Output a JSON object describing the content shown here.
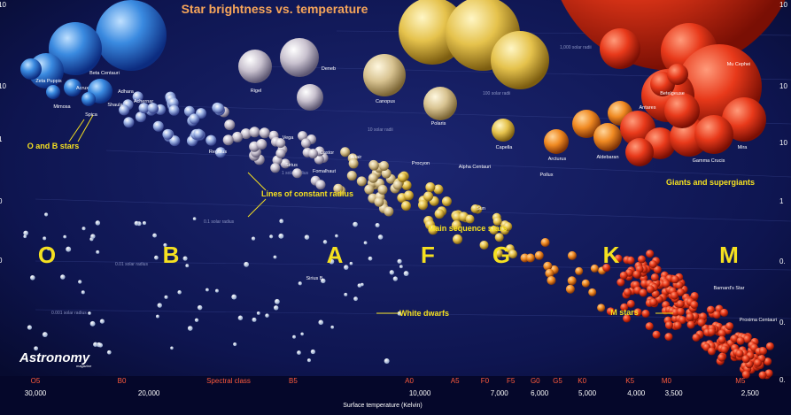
{
  "chart_data": {
    "type": "scatter",
    "title": "Star brightness vs. temperature",
    "xlabel": "Surface temperature (Kelvin)",
    "x_axis_reversed": true,
    "spectral_axis_title": "Spectral class",
    "spectral_ticks": [
      {
        "label": "O5",
        "temp": 42000
      },
      {
        "label": "B0",
        "temp": 30000
      },
      {
        "label": "B5",
        "temp": 15400
      },
      {
        "label": "A0",
        "temp": 9800
      },
      {
        "label": "A5",
        "temp": 8200
      },
      {
        "label": "F0",
        "temp": 7300
      },
      {
        "label": "F5",
        "temp": 6600
      },
      {
        "label": "G0",
        "temp": 6000
      },
      {
        "label": "G5",
        "temp": 5500
      },
      {
        "label": "K0",
        "temp": 5000
      },
      {
        "label": "K5",
        "temp": 4150
      },
      {
        "label": "M0",
        "temp": 3600
      },
      {
        "label": "M5",
        "temp": 2700
      }
    ],
    "temperature_ticks": [
      {
        "label": "30,000",
        "temp": 42000
      },
      {
        "label": "20,000",
        "temp": 27000
      },
      {
        "label": "10,000",
        "temp": 9400
      },
      {
        "label": "7,000",
        "temp": 6900
      },
      {
        "label": "6,000",
        "temp": 5900
      },
      {
        "label": "5,000",
        "temp": 4900
      },
      {
        "label": "4,000",
        "temp": 4050
      },
      {
        "label": "3,500",
        "temp": 3500
      },
      {
        "label": "2,500",
        "temp": 2600
      }
    ],
    "spectral_letters": [
      "O",
      "B",
      "A",
      "F",
      "G",
      "K",
      "M"
    ],
    "region_labels": [
      {
        "text": "O and B stars"
      },
      {
        "text": "Lines of constant radius"
      },
      {
        "text": "Main sequence stars"
      },
      {
        "text": "Giants and supergiants"
      },
      {
        "text": "White dwarfs"
      },
      {
        "text": "M stars"
      }
    ],
    "radius_lines": [
      {
        "label": "1,000 solar radii"
      },
      {
        "label": "100 solar radii"
      },
      {
        "label": "10 solar radii"
      },
      {
        "label": "1 solar radius"
      },
      {
        "label": "0.1 solar radius"
      },
      {
        "label": "0.01 solar radius"
      },
      {
        "label": "0.001 solar radius"
      }
    ],
    "named_stars": [
      {
        "name": "Zeta Puppis",
        "temp": 40000,
        "class": "O"
      },
      {
        "name": "Beta Centauri",
        "temp": 25000,
        "class": "B"
      },
      {
        "name": "Acrux",
        "temp": 28000,
        "class": "B"
      },
      {
        "name": "Adhara",
        "temp": 22000,
        "class": "B"
      },
      {
        "name": "Mimosa",
        "temp": 27000,
        "class": "B"
      },
      {
        "name": "Shaula",
        "temp": 25000,
        "class": "B"
      },
      {
        "name": "Spica",
        "temp": 24000,
        "class": "B"
      },
      {
        "name": "Achernar",
        "temp": 16000,
        "class": "B"
      },
      {
        "name": "Rigel",
        "temp": 12000,
        "class": "B"
      },
      {
        "name": "Deneb",
        "temp": 8500,
        "class": "A"
      },
      {
        "name": "Canopus",
        "temp": 7300,
        "class": "F"
      },
      {
        "name": "Polaris",
        "temp": 6000,
        "class": "F"
      },
      {
        "name": "Regulus",
        "temp": 12000,
        "class": "B"
      },
      {
        "name": "Vega",
        "temp": 9600,
        "class": "A"
      },
      {
        "name": "Sirius",
        "temp": 9900,
        "class": "A"
      },
      {
        "name": "Castor",
        "temp": 10000,
        "class": "A"
      },
      {
        "name": "Fomalhaut",
        "temp": 8600,
        "class": "A"
      },
      {
        "name": "Altair",
        "temp": 7700,
        "class": "A"
      },
      {
        "name": "Procyon",
        "temp": 6500,
        "class": "F"
      },
      {
        "name": "Alpha Centauri",
        "temp": 5800,
        "class": "G"
      },
      {
        "name": "Sun",
        "temp": 5800,
        "class": "G"
      },
      {
        "name": "Capella",
        "temp": 5000,
        "class": "G"
      },
      {
        "name": "Arcturus",
        "temp": 4300,
        "class": "K"
      },
      {
        "name": "Pollux",
        "temp": 4600,
        "class": "K"
      },
      {
        "name": "Aldebaran",
        "temp": 3900,
        "class": "K"
      },
      {
        "name": "Antares",
        "temp": 3400,
        "class": "M"
      },
      {
        "name": "Betelgeuse",
        "temp": 3500,
        "class": "M"
      },
      {
        "name": "Mu Cephei",
        "temp": 3700,
        "class": "M"
      },
      {
        "name": "Gamma Crucis",
        "temp": 3600,
        "class": "M"
      },
      {
        "name": "Mira",
        "temp": 3000,
        "class": "M"
      },
      {
        "name": "Sirius B",
        "temp": 25000,
        "class": "B"
      },
      {
        "name": "Barnard's Star",
        "temp": 3100,
        "class": "M"
      },
      {
        "name": "Proxima Centauri",
        "temp": 3000,
        "class": "M"
      }
    ],
    "left_axis_ticks": [
      "10",
      "10",
      "1",
      "0",
      "0"
    ],
    "right_axis_ticks": [
      "10",
      "10",
      "10",
      "1",
      "0.",
      "0.",
      "0."
    ],
    "grid": false,
    "background": "#0a0f3c",
    "colors": {
      "title": "#f6a55a",
      "region_label": "#f5e020",
      "spectral_class": "#ff5a3c",
      "temperature": "#ffffff",
      "big_letters": "#f5e020",
      "star_labels": "#ffffff",
      "faint_labels": "#8a93c2"
    }
  },
  "branding": {
    "logo_text": "Astronomy",
    "logo_sub": "magazine"
  }
}
